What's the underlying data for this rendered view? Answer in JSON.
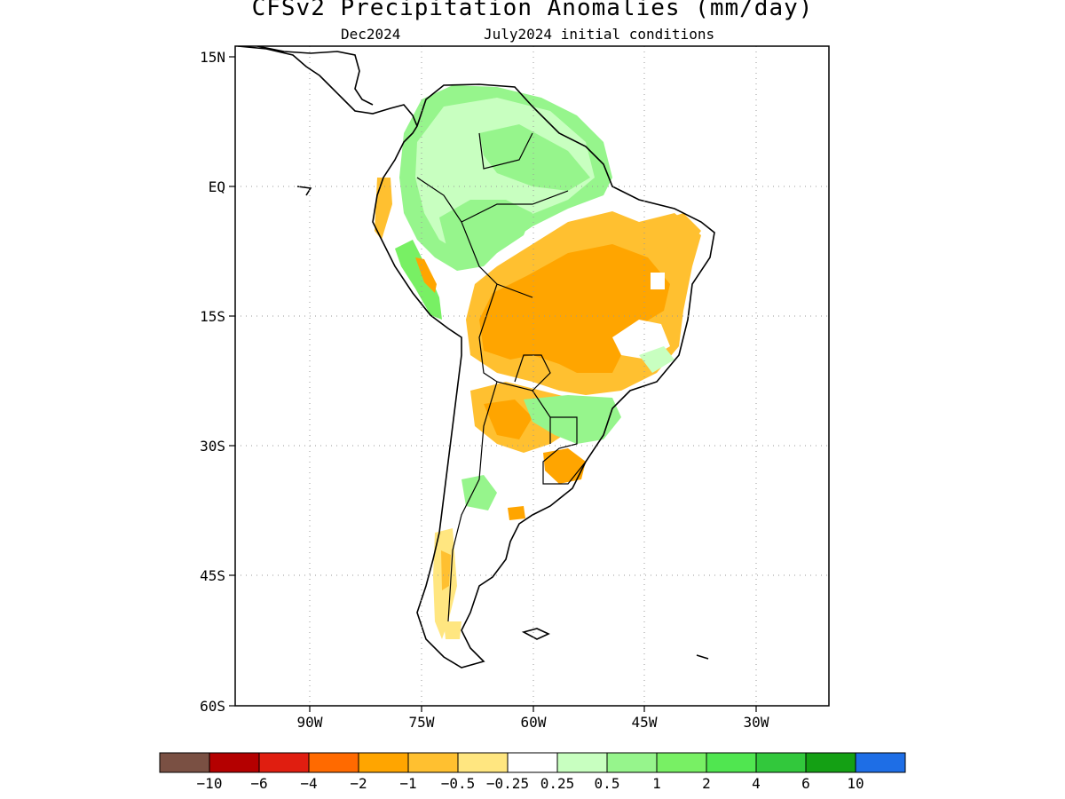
{
  "title": "CFSv2 Precipitation Anomalies (mm/day)",
  "subtitle_left": "Dec2024",
  "subtitle_right": "July2024 initial conditions",
  "axes": {
    "lat_labels": [
      "15N",
      "EQ",
      "15S",
      "30S",
      "45S",
      "60S"
    ],
    "lon_labels": [
      "90W",
      "75W",
      "60W",
      "45W",
      "30W"
    ],
    "grid": "dotted"
  },
  "legend": {
    "labels": [
      "-10",
      "-6",
      "-4",
      "-2",
      "-1",
      "-0.5",
      "-0.25",
      "0.25",
      "0.5",
      "1",
      "2",
      "4",
      "6",
      "10"
    ],
    "colors": [
      "#7a5043",
      "#b40000",
      "#e01e10",
      "#ff6a00",
      "#ffa500",
      "#ffc030",
      "#ffe680",
      "#ffffff",
      "#c8ffc0",
      "#96f58c",
      "#78f064",
      "#50e650",
      "#32c83c",
      "#14a014",
      "#1e6ee6"
    ]
  }
}
